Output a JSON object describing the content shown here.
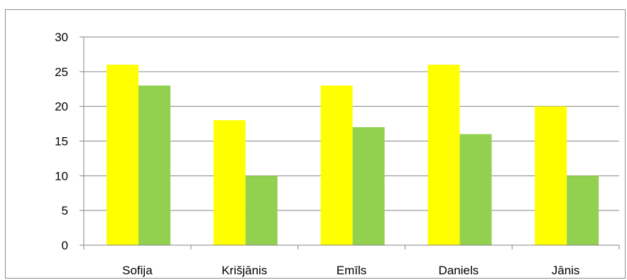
{
  "chart_data": {
    "type": "bar",
    "categories": [
      "Sofija",
      "Krišjānis",
      "Emīls",
      "Daniels",
      "Jānis"
    ],
    "series": [
      {
        "values": [
          26,
          18,
          23,
          26,
          20
        ],
        "color": "#ffff00"
      },
      {
        "values": [
          23,
          10,
          17,
          16,
          10
        ],
        "color": "#92d050"
      }
    ],
    "ylim": [
      0,
      30
    ],
    "yticks": [
      0,
      5,
      10,
      15,
      20,
      25,
      30
    ],
    "grid": true,
    "legend": "none"
  }
}
